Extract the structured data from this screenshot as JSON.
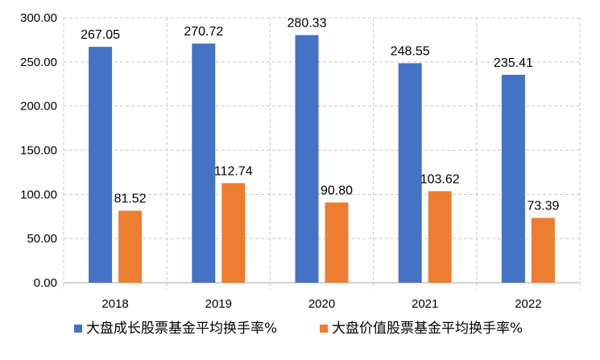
{
  "chart_data": {
    "type": "bar",
    "categories": [
      "2018",
      "2019",
      "2020",
      "2021",
      "2022"
    ],
    "series": [
      {
        "name": "大盘成长股票基金平均换手率%",
        "color": "#4472C4",
        "values": [
          267.05,
          270.72,
          280.33,
          248.55,
          235.41
        ],
        "labels": [
          "267.05",
          "270.72",
          "280.33",
          "248.55",
          "235.41"
        ]
      },
      {
        "name": "大盘价值股票基金平均换手率%",
        "color": "#ED7D31",
        "values": [
          81.52,
          112.74,
          90.8,
          103.62,
          73.39
        ],
        "labels": [
          "81.52",
          "112.74",
          "90.80",
          "103.62",
          "73.39"
        ]
      }
    ],
    "title": "",
    "xlabel": "",
    "ylabel": "",
    "ylim": [
      0,
      300
    ],
    "yticks": [
      0,
      50,
      100,
      150,
      200,
      250,
      300
    ],
    "ytick_labels": [
      "0.00",
      "50.00",
      "100.00",
      "150.00",
      "200.00",
      "250.00",
      "300.00"
    ],
    "grid": true,
    "legend_position": "bottom"
  }
}
